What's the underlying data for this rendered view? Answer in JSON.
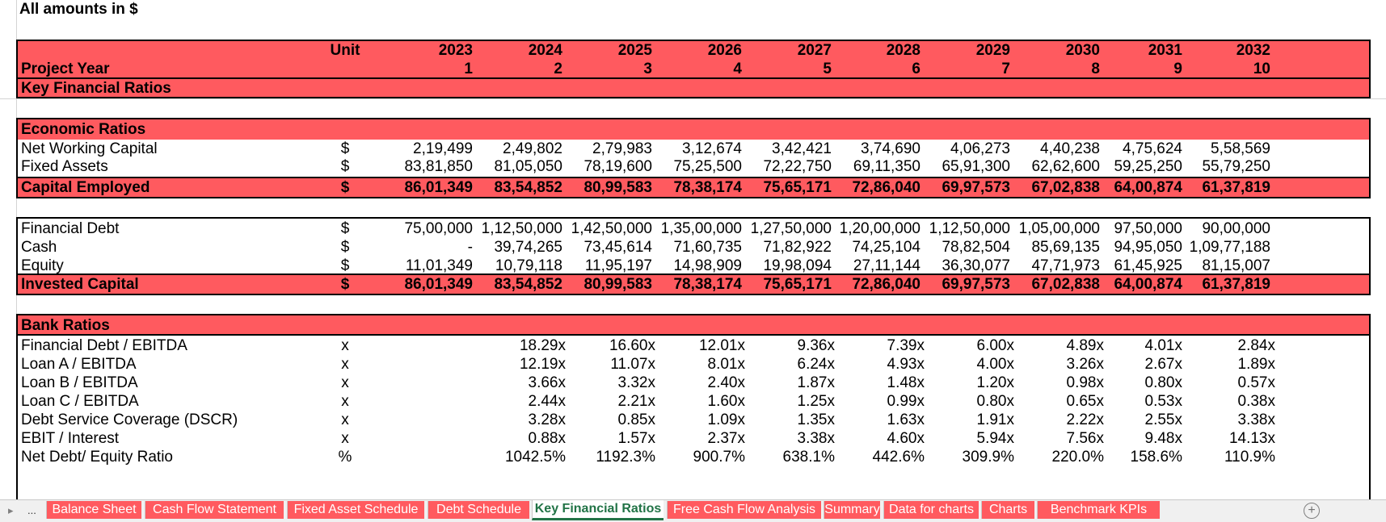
{
  "note": "All amounts in $",
  "years": [
    "2023",
    "2024",
    "2025",
    "2026",
    "2027",
    "2028",
    "2029",
    "2030",
    "2031",
    "2032"
  ],
  "project_years": [
    "1",
    "2",
    "3",
    "4",
    "5",
    "6",
    "7",
    "8",
    "9",
    "10"
  ],
  "header": {
    "unit_label": "Unit",
    "project_year_label": "Project Year",
    "section_title": "Key Financial Ratios"
  },
  "economic": {
    "title": "Economic Ratios",
    "rows": [
      {
        "label": "Net Working Capital",
        "unit": "$",
        "values": [
          "2,19,499",
          "2,49,802",
          "2,79,983",
          "3,12,674",
          "3,42,421",
          "3,74,690",
          "4,06,273",
          "4,40,238",
          "4,75,624",
          "5,58,569"
        ]
      },
      {
        "label": "Fixed Assets",
        "unit": "$",
        "values": [
          "83,81,850",
          "81,05,050",
          "78,19,600",
          "75,25,500",
          "72,22,750",
          "69,11,350",
          "65,91,300",
          "62,62,600",
          "59,25,250",
          "55,79,250"
        ]
      }
    ],
    "total": {
      "label": "Capital Employed",
      "unit": "$",
      "values": [
        "86,01,349",
        "83,54,852",
        "80,99,583",
        "78,38,174",
        "75,65,171",
        "72,86,040",
        "69,97,573",
        "67,02,838",
        "64,00,874",
        "61,37,819"
      ]
    }
  },
  "invested": {
    "rows": [
      {
        "label": "Financial Debt",
        "unit": "$",
        "values": [
          "75,00,000",
          "1,12,50,000",
          "1,42,50,000",
          "1,35,00,000",
          "1,27,50,000",
          "1,20,00,000",
          "1,12,50,000",
          "1,05,00,000",
          "97,50,000",
          "90,00,000"
        ]
      },
      {
        "label": "Cash",
        "unit": "$",
        "values": [
          "-",
          "39,74,265",
          "73,45,614",
          "71,60,735",
          "71,82,922",
          "74,25,104",
          "78,82,504",
          "85,69,135",
          "94,95,050",
          "1,09,77,188"
        ]
      },
      {
        "label": "Equity",
        "unit": "$",
        "values": [
          "11,01,349",
          "10,79,118",
          "11,95,197",
          "14,98,909",
          "19,98,094",
          "27,11,144",
          "36,30,077",
          "47,71,973",
          "61,45,925",
          "81,15,007"
        ]
      }
    ],
    "total": {
      "label": "Invested Capital",
      "unit": "$",
      "values": [
        "86,01,349",
        "83,54,852",
        "80,99,583",
        "78,38,174",
        "75,65,171",
        "72,86,040",
        "69,97,573",
        "67,02,838",
        "64,00,874",
        "61,37,819"
      ]
    }
  },
  "bank": {
    "title": "Bank Ratios",
    "rows": [
      {
        "label": "Financial Debt / EBITDA",
        "unit": "x",
        "values": [
          "",
          "18.29x",
          "16.60x",
          "12.01x",
          "9.36x",
          "7.39x",
          "6.00x",
          "4.89x",
          "4.01x",
          "2.84x"
        ]
      },
      {
        "label": "Loan A / EBITDA",
        "unit": "x",
        "values": [
          "",
          "12.19x",
          "11.07x",
          "8.01x",
          "6.24x",
          "4.93x",
          "4.00x",
          "3.26x",
          "2.67x",
          "1.89x"
        ]
      },
      {
        "label": "Loan B / EBITDA",
        "unit": "x",
        "values": [
          "",
          "3.66x",
          "3.32x",
          "2.40x",
          "1.87x",
          "1.48x",
          "1.20x",
          "0.98x",
          "0.80x",
          "0.57x"
        ]
      },
      {
        "label": "Loan C / EBITDA",
        "unit": "x",
        "values": [
          "",
          "2.44x",
          "2.21x",
          "1.60x",
          "1.25x",
          "0.99x",
          "0.80x",
          "0.65x",
          "0.53x",
          "0.38x"
        ]
      },
      {
        "label": "Debt Service Coverage (DSCR)",
        "unit": "x",
        "values": [
          "",
          "3.28x",
          "0.85x",
          "1.09x",
          "1.35x",
          "1.63x",
          "1.91x",
          "2.22x",
          "2.55x",
          "3.38x"
        ]
      },
      {
        "label": "EBIT / Interest",
        "unit": "x",
        "values": [
          "",
          "0.88x",
          "1.57x",
          "2.37x",
          "3.38x",
          "4.60x",
          "5.94x",
          "7.56x",
          "9.48x",
          "14.13x"
        ]
      },
      {
        "label": "Net Debt/ Equity Ratio",
        "unit": "%",
        "values": [
          "",
          "1042.5%",
          "1192.3%",
          "900.7%",
          "638.1%",
          "442.6%",
          "309.9%",
          "220.0%",
          "158.6%",
          "110.9%"
        ]
      }
    ]
  },
  "tabs": {
    "nav_more": "...",
    "items": [
      "Balance Sheet",
      "Cash Flow Statement",
      "Fixed Asset Schedule",
      "Debt Schedule",
      "Key Financial Ratios",
      "Free Cash Flow Analysis",
      "Summary",
      "Data for charts",
      "Charts",
      "Benchmark KPIs"
    ],
    "active_index": 4
  },
  "colors": {
    "header_fill": "#ff5a5f",
    "active_tab_text": "#217346"
  }
}
